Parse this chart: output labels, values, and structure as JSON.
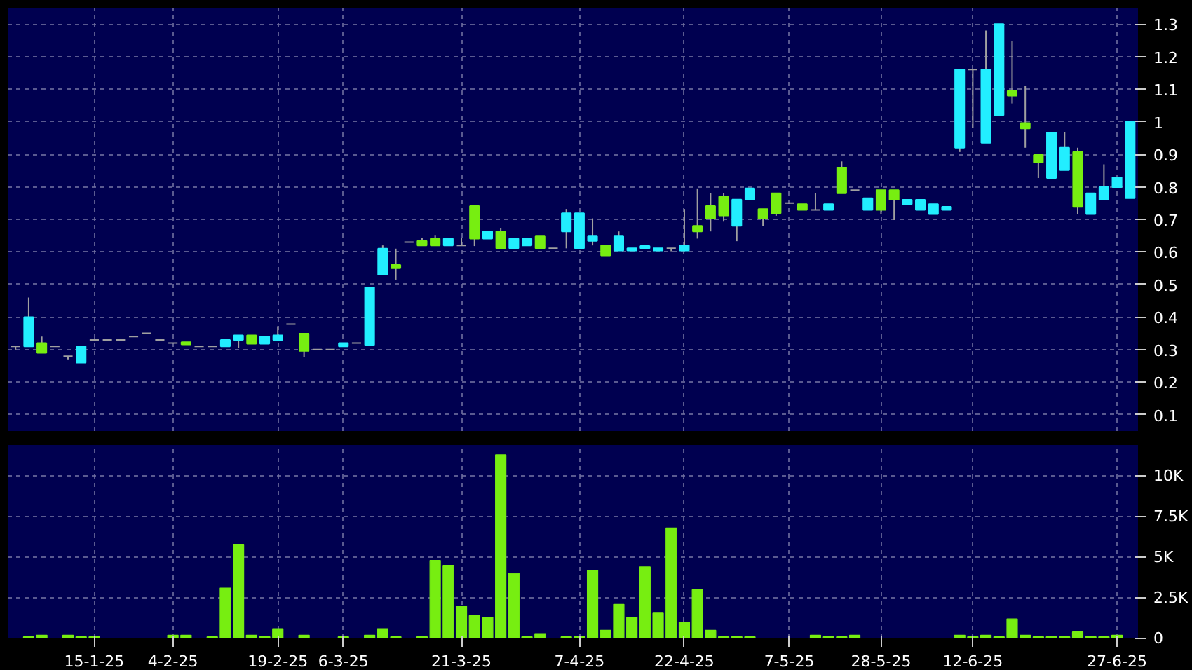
{
  "chart_data": [
    {
      "type": "candlestick",
      "tick_labels": "y",
      "grid": true,
      "ylim": [
        0.05,
        1.35
      ],
      "yticks": [
        0.1,
        0.2,
        0.3,
        0.4,
        0.5,
        0.6,
        0.7,
        0.8,
        0.9,
        1,
        1.1,
        1.2,
        1.3
      ],
      "ohlc": [
        [
          0.31,
          0.31,
          0.3,
          0.31
        ],
        [
          0.31,
          0.46,
          0.31,
          0.4
        ],
        [
          0.32,
          0.34,
          0.29,
          0.29
        ],
        [
          0.31,
          0.31,
          0.31,
          0.31
        ],
        [
          0.28,
          0.28,
          0.27,
          0.28
        ],
        [
          0.26,
          0.31,
          0.26,
          0.31
        ],
        [
          0.33,
          0.33,
          0.33,
          0.33
        ],
        [
          0.33,
          0.33,
          0.33,
          0.33
        ],
        [
          0.33,
          0.33,
          0.33,
          0.33
        ],
        [
          0.34,
          0.34,
          0.34,
          0.34
        ],
        [
          0.35,
          0.35,
          0.35,
          0.35
        ],
        [
          0.33,
          0.33,
          0.33,
          0.33
        ],
        [
          0.32,
          0.32,
          0.32,
          0.32
        ],
        [
          0.323,
          0.323,
          0.316,
          0.316
        ],
        [
          0.31,
          0.31,
          0.31,
          0.31
        ],
        [
          0.31,
          0.31,
          0.31,
          0.31
        ],
        [
          0.31,
          0.33,
          0.31,
          0.33
        ],
        [
          0.33,
          0.344,
          0.306,
          0.344
        ],
        [
          0.344,
          0.344,
          0.318,
          0.318
        ],
        [
          0.318,
          0.34,
          0.318,
          0.34
        ],
        [
          0.33,
          0.372,
          0.33,
          0.344
        ],
        [
          0.378,
          0.378,
          0.378,
          0.378
        ],
        [
          0.349,
          0.349,
          0.278,
          0.296
        ],
        [
          0.3,
          0.3,
          0.3,
          0.3
        ],
        [
          0.3,
          0.3,
          0.3,
          0.3
        ],
        [
          0.31,
          0.32,
          0.31,
          0.32
        ],
        [
          0.32,
          0.32,
          0.32,
          0.32
        ],
        [
          0.314,
          0.491,
          0.314,
          0.491
        ],
        [
          0.53,
          0.62,
          0.53,
          0.61
        ],
        [
          0.56,
          0.61,
          0.515,
          0.55
        ],
        [
          0.63,
          0.63,
          0.63,
          0.63
        ],
        [
          0.634,
          0.643,
          0.62,
          0.62
        ],
        [
          0.641,
          0.65,
          0.62,
          0.62
        ],
        [
          0.62,
          0.641,
          0.62,
          0.641
        ],
        [
          0.62,
          0.643,
          0.62,
          0.62
        ],
        [
          0.741,
          0.741,
          0.618,
          0.641
        ],
        [
          0.641,
          0.663,
          0.641,
          0.663
        ],
        [
          0.663,
          0.672,
          0.611,
          0.611
        ],
        [
          0.611,
          0.641,
          0.611,
          0.641
        ],
        [
          0.62,
          0.641,
          0.62,
          0.641
        ],
        [
          0.648,
          0.648,
          0.611,
          0.611
        ],
        [
          0.611,
          0.611,
          0.611,
          0.611
        ],
        [
          0.663,
          0.732,
          0.611,
          0.719
        ],
        [
          0.611,
          0.719,
          0.611,
          0.719
        ],
        [
          0.634,
          0.703,
          0.62,
          0.648
        ],
        [
          0.62,
          0.62,
          0.589,
          0.589
        ],
        [
          0.604,
          0.663,
          0.604,
          0.648
        ],
        [
          0.604,
          0.611,
          0.604,
          0.611
        ],
        [
          0.611,
          0.618,
          0.611,
          0.618
        ],
        [
          0.604,
          0.611,
          0.604,
          0.611
        ],
        [
          0.611,
          0.611,
          0.602,
          0.611
        ],
        [
          0.604,
          0.732,
          0.604,
          0.62
        ],
        [
          0.68,
          0.795,
          0.641,
          0.663
        ],
        [
          0.741,
          0.78,
          0.663,
          0.702
        ],
        [
          0.77,
          0.78,
          0.693,
          0.712
        ],
        [
          0.68,
          0.761,
          0.633,
          0.761
        ],
        [
          0.761,
          0.795,
          0.761,
          0.795
        ],
        [
          0.732,
          0.732,
          0.68,
          0.702
        ],
        [
          0.78,
          0.78,
          0.711,
          0.719
        ],
        [
          0.75,
          0.75,
          0.75,
          0.75
        ],
        [
          0.747,
          0.747,
          0.729,
          0.729
        ],
        [
          0.729,
          0.78,
          0.729,
          0.729
        ],
        [
          0.729,
          0.747,
          0.729,
          0.747
        ],
        [
          0.859,
          0.878,
          0.78,
          0.78
        ],
        [
          0.79,
          0.79,
          0.79,
          0.79
        ],
        [
          0.729,
          0.765,
          0.729,
          0.765
        ],
        [
          0.79,
          0.79,
          0.715,
          0.729
        ],
        [
          0.79,
          0.79,
          0.698,
          0.76
        ],
        [
          0.747,
          0.76,
          0.747,
          0.76
        ],
        [
          0.729,
          0.76,
          0.729,
          0.76
        ],
        [
          0.716,
          0.747,
          0.716,
          0.747
        ],
        [
          0.729,
          0.739,
          0.729,
          0.739
        ],
        [
          0.92,
          1.16,
          0.907,
          1.16
        ],
        [
          1.16,
          1.16,
          0.98,
          1.16
        ],
        [
          0.935,
          1.28,
          0.935,
          1.16
        ],
        [
          1.02,
          1.3,
          1.02,
          1.3
        ],
        [
          1.095,
          1.248,
          1.056,
          1.08
        ],
        [
          0.996,
          1.11,
          0.92,
          0.979
        ],
        [
          0.898,
          0.898,
          0.827,
          0.875
        ],
        [
          0.827,
          0.967,
          0.827,
          0.967
        ],
        [
          0.851,
          0.969,
          0.851,
          0.92
        ],
        [
          0.907,
          0.92,
          0.715,
          0.738
        ],
        [
          0.716,
          0.78,
          0.716,
          0.78
        ],
        [
          0.76,
          0.869,
          0.76,
          0.799
        ],
        [
          0.799,
          0.829,
          0.799,
          0.829
        ],
        [
          0.765,
          1.0,
          0.765,
          1.0
        ]
      ],
      "colors": [
        "#a0a0a0",
        "#22eeff",
        "#77ee11",
        "#a0a0a0",
        "#a0a0a0",
        "#22eeff",
        "#a0a0a0",
        "#a0a0a0",
        "#a0a0a0",
        "#a0a0a0",
        "#a0a0a0",
        "#a0a0a0",
        "#a0a0a0",
        "#77ee11",
        "#a0a0a0",
        "#a0a0a0",
        "#22eeff",
        "#22eeff",
        "#77ee11",
        "#22eeff",
        "#22eeff",
        "#a0a0a0",
        "#77ee11",
        "#a0a0a0",
        "#a0a0a0",
        "#22eeff",
        "#a0a0a0",
        "#22eeff",
        "#22eeff",
        "#77ee11",
        "#a0a0a0",
        "#77ee11",
        "#77ee11",
        "#22eeff",
        "#a0a0a0",
        "#77ee11",
        "#22eeff",
        "#77ee11",
        "#22eeff",
        "#22eeff",
        "#77ee11",
        "#a0a0a0",
        "#22eeff",
        "#22eeff",
        "#22eeff",
        "#77ee11",
        "#22eeff",
        "#22eeff",
        "#22eeff",
        "#22eeff",
        "#a0a0a0",
        "#22eeff",
        "#77ee11",
        "#77ee11",
        "#77ee11",
        "#22eeff",
        "#22eeff",
        "#77ee11",
        "#77ee11",
        "#a0a0a0",
        "#77ee11",
        "#a0a0a0",
        "#22eeff",
        "#77ee11",
        "#a0a0a0",
        "#22eeff",
        "#77ee11",
        "#77ee11",
        "#22eeff",
        "#22eeff",
        "#22eeff",
        "#22eeff",
        "#22eeff",
        "#a0a0a0",
        "#22eeff",
        "#22eeff",
        "#77ee11",
        "#77ee11",
        "#77ee11",
        "#22eeff",
        "#22eeff",
        "#77ee11",
        "#22eeff",
        "#22eeff",
        "#22eeff",
        "#22eeff"
      ]
    },
    {
      "type": "bar",
      "grid": true,
      "color": "#77ee11",
      "ylim": [
        0,
        11900
      ],
      "yticks": [
        0,
        {
          "value": 2500,
          "label": "2.5K"
        },
        {
          "value": 5000,
          "label": "5K"
        },
        {
          "value": 7500,
          "label": "7.5K"
        },
        {
          "value": 10000,
          "label": "10K"
        }
      ],
      "categories": [
        null,
        null,
        null,
        null,
        null,
        null,
        "15-1-25",
        null,
        null,
        null,
        null,
        null,
        "4-2-25",
        null,
        null,
        null,
        null,
        null,
        null,
        null,
        "19-2-25",
        null,
        null,
        null,
        null,
        "6-3-25",
        null,
        null,
        null,
        null,
        null,
        null,
        null,
        null,
        "21-3-25",
        null,
        null,
        null,
        null,
        null,
        null,
        null,
        null,
        "7-4-25",
        null,
        null,
        null,
        null,
        null,
        null,
        null,
        "22-4-25",
        null,
        null,
        null,
        null,
        null,
        null,
        null,
        "7-5-25",
        null,
        null,
        null,
        null,
        null,
        null,
        "28-5-25",
        null,
        null,
        null,
        null,
        null,
        null,
        "12-6-25",
        null,
        null,
        null,
        null,
        null,
        null,
        null,
        null,
        null,
        null,
        "27-6-25",
        null
      ],
      "values": [
        0,
        100,
        200,
        0,
        200,
        100,
        100,
        0,
        0,
        0,
        0,
        0,
        200,
        200,
        0,
        100,
        3100,
        5800,
        200,
        100,
        600,
        0,
        200,
        0,
        0,
        100,
        0,
        200,
        600,
        100,
        0,
        100,
        4800,
        4500,
        2000,
        1400,
        1300,
        11300,
        4000,
        100,
        300,
        0,
        100,
        100,
        4200,
        500,
        2100,
        1300,
        4400,
        1600,
        6800,
        1000,
        3000,
        500,
        100,
        100,
        100,
        0,
        0,
        0,
        0,
        200,
        100,
        100,
        200,
        0,
        0,
        0,
        0,
        0,
        0,
        0,
        200,
        100,
        200,
        100,
        1200,
        200,
        100,
        100,
        100,
        400,
        100,
        100,
        200,
        0
      ]
    }
  ]
}
